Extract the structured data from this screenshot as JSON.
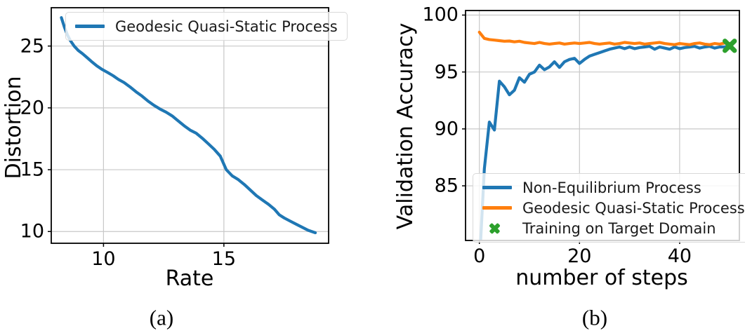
{
  "figure": {
    "captions": {
      "a": "(a)",
      "b": "(b)"
    }
  },
  "colors": {
    "blue": "#1f77b4",
    "orange": "#ff7f0e",
    "green": "#2ca02c",
    "grid": "#c8c8c8",
    "spine": "#000000",
    "legend_border": "#d9d9d9",
    "legend_background": "rgba(255,255,255,0.8)",
    "text": "#000000"
  },
  "chart_data": [
    {
      "id": "rate-distortion",
      "type": "line",
      "title": "",
      "xlabel": "Rate",
      "ylabel": "Distortion",
      "xlim": [
        7.83,
        19.35
      ],
      "ylim": [
        9.05,
        28.1
      ],
      "xticks": [
        10,
        15
      ],
      "yticks": [
        10,
        15,
        20,
        25
      ],
      "grid": true,
      "legend_position": "upper right",
      "series": [
        {
          "name": "Geodesic Quasi-Static Process",
          "color": "#1f77b4",
          "style": "line",
          "x": [
            8.25,
            8.38,
            8.5,
            8.62,
            8.78,
            8.95,
            9.12,
            9.3,
            9.5,
            9.72,
            9.95,
            10.18,
            10.4,
            10.62,
            10.85,
            11.1,
            11.35,
            11.6,
            11.85,
            12.1,
            12.35,
            12.6,
            12.85,
            13.1,
            13.35,
            13.6,
            13.85,
            14.1,
            14.35,
            14.6,
            14.85,
            15.1,
            15.35,
            15.6,
            15.85,
            16.1,
            16.35,
            16.6,
            16.85,
            17.1,
            17.3,
            17.5,
            17.75,
            18.0,
            18.25,
            18.5,
            18.8
          ],
          "y": [
            27.3,
            26.5,
            25.9,
            25.45,
            25.0,
            24.65,
            24.4,
            24.1,
            23.75,
            23.4,
            23.1,
            22.85,
            22.6,
            22.3,
            22.05,
            21.7,
            21.3,
            20.95,
            20.55,
            20.2,
            19.9,
            19.65,
            19.35,
            18.95,
            18.55,
            18.2,
            17.95,
            17.55,
            17.1,
            16.65,
            16.1,
            15.0,
            14.5,
            14.2,
            13.8,
            13.35,
            12.9,
            12.55,
            12.2,
            11.8,
            11.35,
            11.1,
            10.85,
            10.6,
            10.35,
            10.1,
            9.9
          ]
        }
      ]
    },
    {
      "id": "validation-accuracy",
      "type": "line",
      "title": "",
      "xlabel": "number of steps",
      "ylabel": "Validation Accuracy",
      "xlim": [
        -2.76,
        51.93
      ],
      "ylim": [
        80.2,
        100.4
      ],
      "xticks": [
        0,
        20,
        40
      ],
      "yticks": [
        85,
        90,
        95,
        100
      ],
      "grid": true,
      "legend_position": "lower left",
      "series": [
        {
          "name": "Non-Equilibrium Process",
          "color": "#1f77b4",
          "style": "line",
          "x": [
            0,
            1,
            2,
            3,
            4,
            5,
            6,
            7,
            8,
            9,
            10,
            11,
            12,
            13,
            14,
            15,
            16,
            17,
            18,
            19,
            20,
            21,
            22,
            23,
            24,
            25,
            26,
            27,
            28,
            29,
            30,
            31,
            32,
            33,
            34,
            35,
            36,
            37,
            38,
            39,
            40,
            41,
            42,
            43,
            44,
            45,
            46,
            47,
            48,
            49,
            50
          ],
          "y": [
            78.0,
            86.5,
            90.6,
            89.9,
            94.2,
            93.7,
            93.0,
            93.4,
            94.5,
            94.1,
            94.8,
            95.0,
            95.6,
            95.2,
            95.45,
            95.9,
            95.4,
            95.9,
            96.1,
            96.2,
            95.75,
            96.1,
            96.4,
            96.55,
            96.7,
            96.85,
            97.0,
            97.1,
            97.2,
            97.05,
            97.2,
            97.05,
            97.15,
            97.2,
            97.25,
            97.0,
            97.2,
            97.1,
            97.0,
            97.2,
            97.05,
            97.15,
            97.2,
            97.25,
            97.1,
            97.2,
            97.25,
            97.1,
            97.2,
            97.2,
            97.3
          ]
        },
        {
          "name": "Geodesic Quasi-Static Process",
          "color": "#ff7f0e",
          "style": "line",
          "x": [
            0,
            1,
            2,
            3,
            4,
            5,
            6,
            7,
            8,
            9,
            10,
            11,
            12,
            13,
            14,
            15,
            16,
            17,
            18,
            19,
            20,
            21,
            22,
            23,
            24,
            25,
            26,
            27,
            28,
            29,
            30,
            31,
            32,
            33,
            34,
            35,
            36,
            37,
            38,
            39,
            40,
            41,
            42,
            43,
            44,
            45,
            46,
            47,
            48,
            49,
            50
          ],
          "y": [
            98.5,
            97.95,
            97.85,
            97.8,
            97.75,
            97.7,
            97.72,
            97.65,
            97.7,
            97.6,
            97.55,
            97.5,
            97.6,
            97.5,
            97.45,
            97.5,
            97.55,
            97.45,
            97.5,
            97.55,
            97.5,
            97.55,
            97.6,
            97.5,
            97.45,
            97.5,
            97.55,
            97.45,
            97.5,
            97.6,
            97.55,
            97.5,
            97.55,
            97.45,
            97.5,
            97.55,
            97.6,
            97.5,
            97.45,
            97.4,
            97.5,
            97.45,
            97.4,
            97.5,
            97.55,
            97.45,
            97.4,
            97.5,
            97.45,
            97.55,
            97.5
          ]
        },
        {
          "name": "Training on Target Domain",
          "color": "#2ca02c",
          "style": "marker-x",
          "x": [
            50
          ],
          "y": [
            97.3
          ]
        }
      ]
    }
  ]
}
